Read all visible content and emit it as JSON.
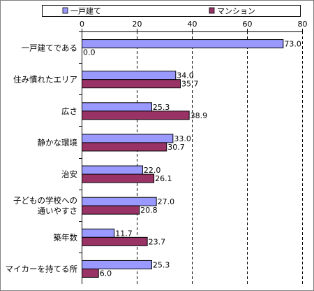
{
  "chart_data": {
    "type": "bar",
    "orientation": "horizontal",
    "title": "",
    "xlabel": "",
    "ylabel": "",
    "xlim": [
      0,
      80
    ],
    "x_ticks": [
      "0",
      "20",
      "40",
      "60",
      "80"
    ],
    "grid": "vertical dashed",
    "legend_position": "top",
    "categories": [
      [
        "一戸建てである"
      ],
      [
        "住み慣れたエリア"
      ],
      [
        "広さ"
      ],
      [
        "静かな環境"
      ],
      [
        "治安"
      ],
      [
        "子どもの学校への",
        "通いやすさ"
      ],
      [
        "築年数"
      ],
      [
        "マイカーを持てる所"
      ]
    ],
    "series": [
      {
        "name": "一戸建て",
        "color": "#9999ff",
        "values": [
          73.0,
          34.0,
          25.3,
          33.0,
          22.0,
          27.0,
          11.7,
          25.3
        ],
        "labels": [
          "73.0",
          "34.0",
          "25.3",
          "33.0",
          "22.0",
          "27.0",
          "11.7",
          "25.3"
        ]
      },
      {
        "name": "マンション",
        "color": "#993366",
        "values": [
          0.0,
          35.7,
          38.9,
          30.7,
          26.1,
          20.8,
          23.7,
          6.0
        ],
        "labels": [
          "0.0",
          "35.7",
          "38.9",
          "30.7",
          "26.1",
          "20.8",
          "23.7",
          "6.0"
        ]
      }
    ]
  }
}
